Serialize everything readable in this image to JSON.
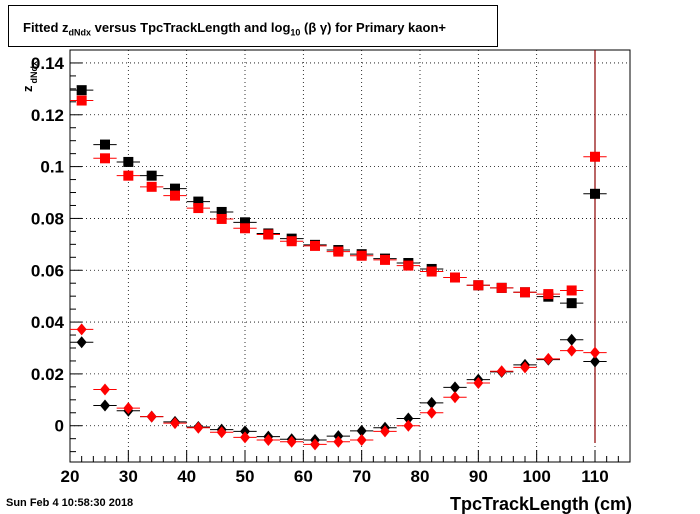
{
  "title_parts": {
    "prefix": "Fitted  z",
    "sub1": "dNdx",
    "middle": "  versus TpcTrackLength and log",
    "sub2": "10",
    "suffix": "(β γ) for Primary kaon+"
  },
  "ylabel": "z",
  "ylabel_sub": "dNdx",
  "xlabel": "TpcTrackLength (cm)",
  "timestamp": "Sun Feb  4 10:58:30 2018",
  "chart_data": {
    "type": "scatter",
    "title": "Fitted z_dNdx versus TpcTrackLength and log10(β γ) for Primary kaon+",
    "xlabel": "TpcTrackLength (cm)",
    "ylabel": "z_dNdx",
    "xlim": [
      20,
      116
    ],
    "ylim": [
      -0.014,
      0.145
    ],
    "xticks": [
      20,
      30,
      40,
      50,
      60,
      70,
      80,
      90,
      100,
      110
    ],
    "yticks": [
      0,
      0.02,
      0.04,
      0.06,
      0.08,
      0.1,
      0.12,
      0.14
    ],
    "ytick_labels": [
      "0",
      "0.02",
      "0.04",
      "0.06",
      "0.08",
      "0.1",
      "0.12",
      "0.14"
    ],
    "grid": true,
    "vertical_line_x": 110,
    "series": [
      {
        "marker": "square",
        "color": "#000000",
        "x": [
          22,
          26,
          30,
          34,
          38,
          42,
          46,
          50,
          54,
          58,
          62,
          66,
          70,
          74,
          78,
          82,
          86,
          90,
          94,
          98,
          102,
          106,
          110
        ],
        "y": [
          0.1295,
          0.1085,
          0.1018,
          0.0965,
          0.0915,
          0.0865,
          0.0825,
          0.0785,
          0.0742,
          0.0722,
          0.0698,
          0.0678,
          0.0662,
          0.0645,
          0.0628,
          0.0605,
          0.0572,
          0.0542,
          0.0532,
          0.0515,
          0.0498,
          0.0473,
          0.0895
        ]
      },
      {
        "marker": "square",
        "color": "#ff0000",
        "x": [
          22,
          26,
          30,
          34,
          38,
          42,
          46,
          50,
          54,
          58,
          62,
          66,
          70,
          74,
          78,
          82,
          86,
          90,
          94,
          98,
          102,
          106,
          110
        ],
        "y": [
          0.1255,
          0.1032,
          0.0965,
          0.0922,
          0.0888,
          0.084,
          0.0798,
          0.0762,
          0.0738,
          0.0712,
          0.0694,
          0.0672,
          0.0656,
          0.064,
          0.0618,
          0.0595,
          0.0572,
          0.0542,
          0.0532,
          0.0515,
          0.0508,
          0.0522,
          0.1038
        ]
      },
      {
        "marker": "diamond",
        "color": "#000000",
        "x": [
          22,
          26,
          30,
          34,
          38,
          42,
          46,
          50,
          54,
          58,
          62,
          66,
          70,
          74,
          78,
          82,
          86,
          90,
          94,
          98,
          102,
          106,
          110
        ],
        "y": [
          0.0322,
          0.0078,
          0.0058,
          0.0035,
          0.0015,
          -0.0005,
          -0.0015,
          -0.0022,
          -0.0042,
          -0.0052,
          -0.0055,
          -0.004,
          -0.002,
          -0.0008,
          0.0028,
          0.0088,
          0.0148,
          0.0178,
          0.0208,
          0.0235,
          0.0255,
          0.0332,
          0.0248
        ]
      },
      {
        "marker": "diamond",
        "color": "#ff0000",
        "x": [
          22,
          26,
          30,
          34,
          38,
          42,
          46,
          50,
          54,
          58,
          62,
          66,
          70,
          74,
          78,
          82,
          86,
          90,
          94,
          98,
          102,
          106,
          110
        ],
        "y": [
          0.0372,
          0.014,
          0.0068,
          0.0035,
          0.001,
          -0.0008,
          -0.0025,
          -0.0045,
          -0.0055,
          -0.0062,
          -0.0072,
          -0.0062,
          -0.0055,
          -0.0022,
          0.0,
          0.005,
          0.011,
          0.0165,
          0.021,
          0.0225,
          0.0258,
          0.029,
          0.0282
        ]
      }
    ]
  }
}
